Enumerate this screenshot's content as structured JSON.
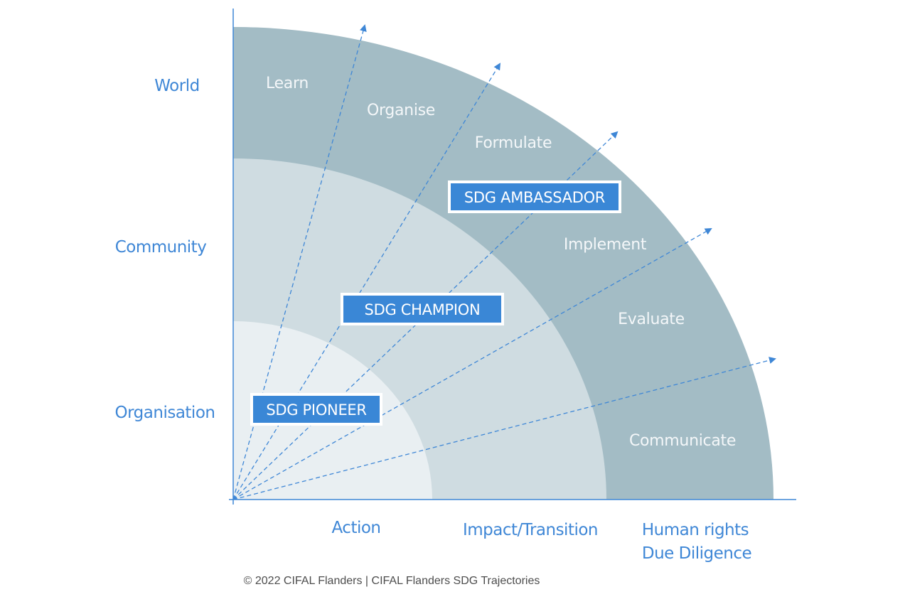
{
  "y_axis": {
    "levels": [
      "World",
      "Community",
      "Organisation"
    ]
  },
  "x_axis": {
    "action": "Action",
    "impact": "Impact/Transition",
    "human_rights_line1": "Human rights",
    "human_rights_line2": "Due Diligence"
  },
  "steps": [
    "Learn",
    "Organise",
    "Formulate",
    "Implement",
    "Evaluate",
    "Communicate"
  ],
  "levels": {
    "pioneer": "SDG PIONEER",
    "champion": "SDG CHAMPION",
    "ambassador": "SDG AMBASSADOR"
  },
  "footer": {
    "credit": "© 2022 CIFAL Flanders | CIFAL Flanders SDG Trajectories"
  },
  "colors": {
    "outer_band": "#a3bcc5",
    "middle_band": "#cfdce1",
    "inner_band": "#e9eff2",
    "axis": "#3f87d6",
    "badge": "#3a87d6",
    "label_text": "#3f87d6"
  }
}
